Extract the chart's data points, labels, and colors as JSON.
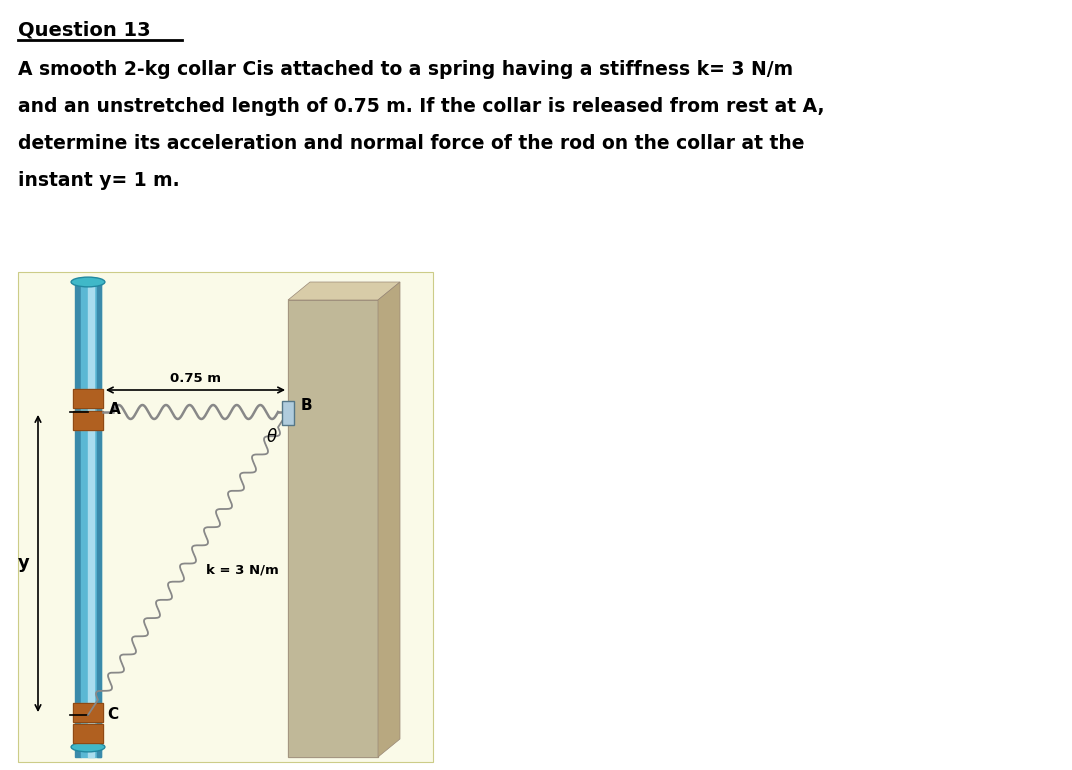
{
  "title": "Question 13",
  "description_lines": [
    "A smooth 2-kg collar Cis attached to a spring having a stiffness k= 3 N/m",
    "and an unstretched length of 0.75 m. If the collar is released from rest at A,",
    "determine its acceleration and normal force of the rod on the collar at the",
    "instant y= 1 m."
  ],
  "bg_color": "#ffffff",
  "diagram_bg": "#fafae8",
  "title_fontsize": 14,
  "text_fontsize": 13.5,
  "wall_color_front": "#c0b898",
  "wall_color_top": "#d8cca8",
  "wall_color_right": "#b8a880",
  "rod_color_main": "#5bb8d4",
  "rod_color_highlight": "#aaddee",
  "rod_color_shadow": "#3a8aaa",
  "rod_color_band": "#b06020",
  "rod_cap_color": "#40b8c8",
  "spring_color": "#888888",
  "text_color": "#000000"
}
